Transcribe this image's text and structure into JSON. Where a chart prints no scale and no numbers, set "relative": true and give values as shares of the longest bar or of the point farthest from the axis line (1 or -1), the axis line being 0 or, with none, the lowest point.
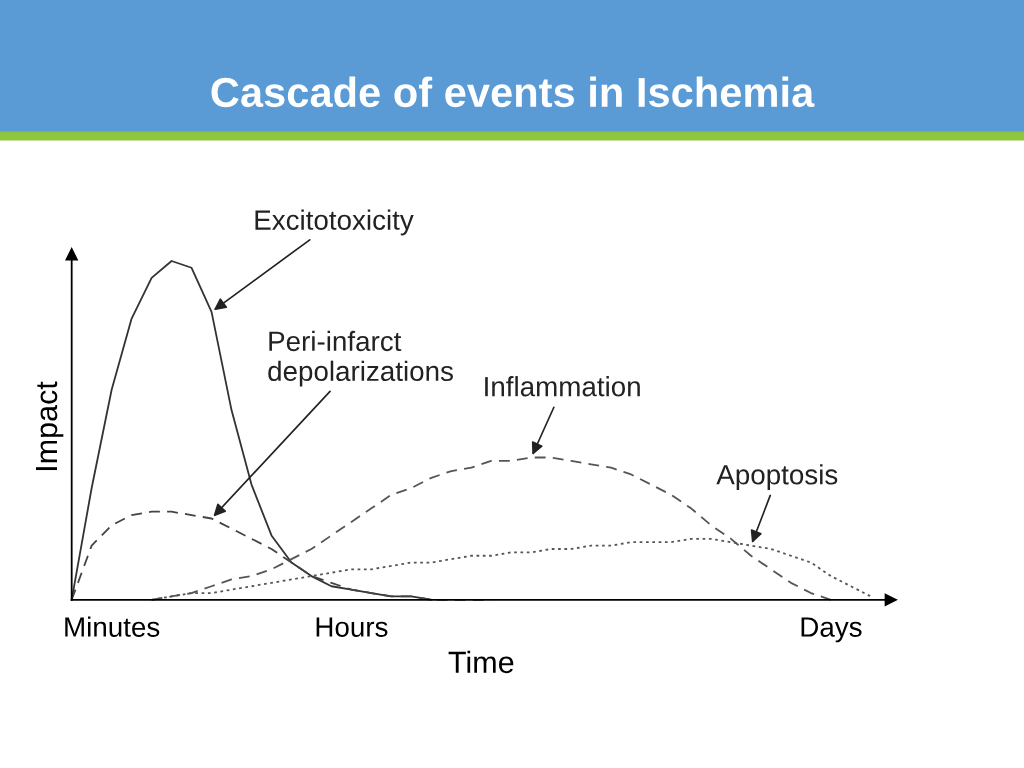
{
  "chart_data": {
    "type": "line",
    "title": "Cascade of events in Ischemia",
    "xlabel": "Time",
    "ylabel": "Impact",
    "relative": true,
    "grid": false,
    "legend": false,
    "categories": [
      null,
      null,
      "Minutes",
      null,
      null,
      null,
      null,
      null,
      null,
      null,
      null,
      null,
      null,
      null,
      "Hours",
      null,
      null,
      null,
      null,
      null,
      null,
      null,
      null,
      null,
      null,
      null,
      null,
      null,
      null,
      null,
      null,
      null,
      null,
      null,
      null,
      null,
      null,
      null,
      "Days",
      null,
      null,
      null
    ],
    "series": [
      {
        "name": "Excitotoxicity",
        "color": "#333333",
        "line_style": "solid",
        "values": [
          0,
          0.33,
          0.62,
          0.83,
          0.95,
          1.0,
          0.98,
          0.85,
          0.56,
          0.34,
          0.19,
          0.11,
          0.07,
          0.04,
          0.03,
          0.02,
          0.01,
          0.01,
          0,
          null,
          null,
          null,
          null,
          null,
          null,
          null,
          null,
          null,
          null,
          null,
          null,
          null,
          null,
          null,
          null,
          null,
          null,
          null,
          null,
          null,
          null,
          null
        ]
      },
      {
        "name": "Peri-infarct\ndepolarizations",
        "color": "#444444",
        "line_style": "dashed",
        "values": [
          0,
          0.16,
          0.22,
          0.25,
          0.26,
          0.26,
          0.25,
          0.24,
          0.21,
          0.18,
          0.15,
          0.11,
          0.07,
          0.05,
          0.03,
          0.02,
          0.01,
          0.01,
          0,
          0,
          0,
          0,
          null,
          null,
          null,
          null,
          null,
          null,
          null,
          null,
          null,
          null,
          null,
          null,
          null,
          null,
          null,
          null,
          null,
          null,
          null,
          null
        ]
      },
      {
        "name": "Inflammation",
        "color": "#555555",
        "line_style": "dashed",
        "values": [
          null,
          null,
          null,
          null,
          0,
          0.01,
          0.02,
          0.04,
          0.06,
          0.07,
          0.09,
          0.12,
          0.15,
          0.19,
          0.23,
          0.27,
          0.31,
          0.33,
          0.36,
          0.38,
          0.39,
          0.41,
          0.41,
          0.42,
          0.42,
          0.41,
          0.4,
          0.39,
          0.37,
          0.34,
          0.31,
          0.27,
          0.22,
          0.18,
          0.13,
          0.09,
          0.05,
          0.02,
          0,
          null,
          null,
          null
        ]
      },
      {
        "name": "Apoptosis",
        "color": "#555555",
        "line_style": "dotted",
        "values": [
          null,
          null,
          null,
          null,
          0,
          0.01,
          0.02,
          0.02,
          0.03,
          0.04,
          0.05,
          0.06,
          0.07,
          0.08,
          0.09,
          0.09,
          0.1,
          0.11,
          0.11,
          0.12,
          0.13,
          0.13,
          0.14,
          0.14,
          0.15,
          0.15,
          0.16,
          0.16,
          0.17,
          0.17,
          0.17,
          0.18,
          0.18,
          0.17,
          0.16,
          0.15,
          0.13,
          0.11,
          0.07,
          0.04,
          0.01,
          null
        ]
      }
    ]
  }
}
